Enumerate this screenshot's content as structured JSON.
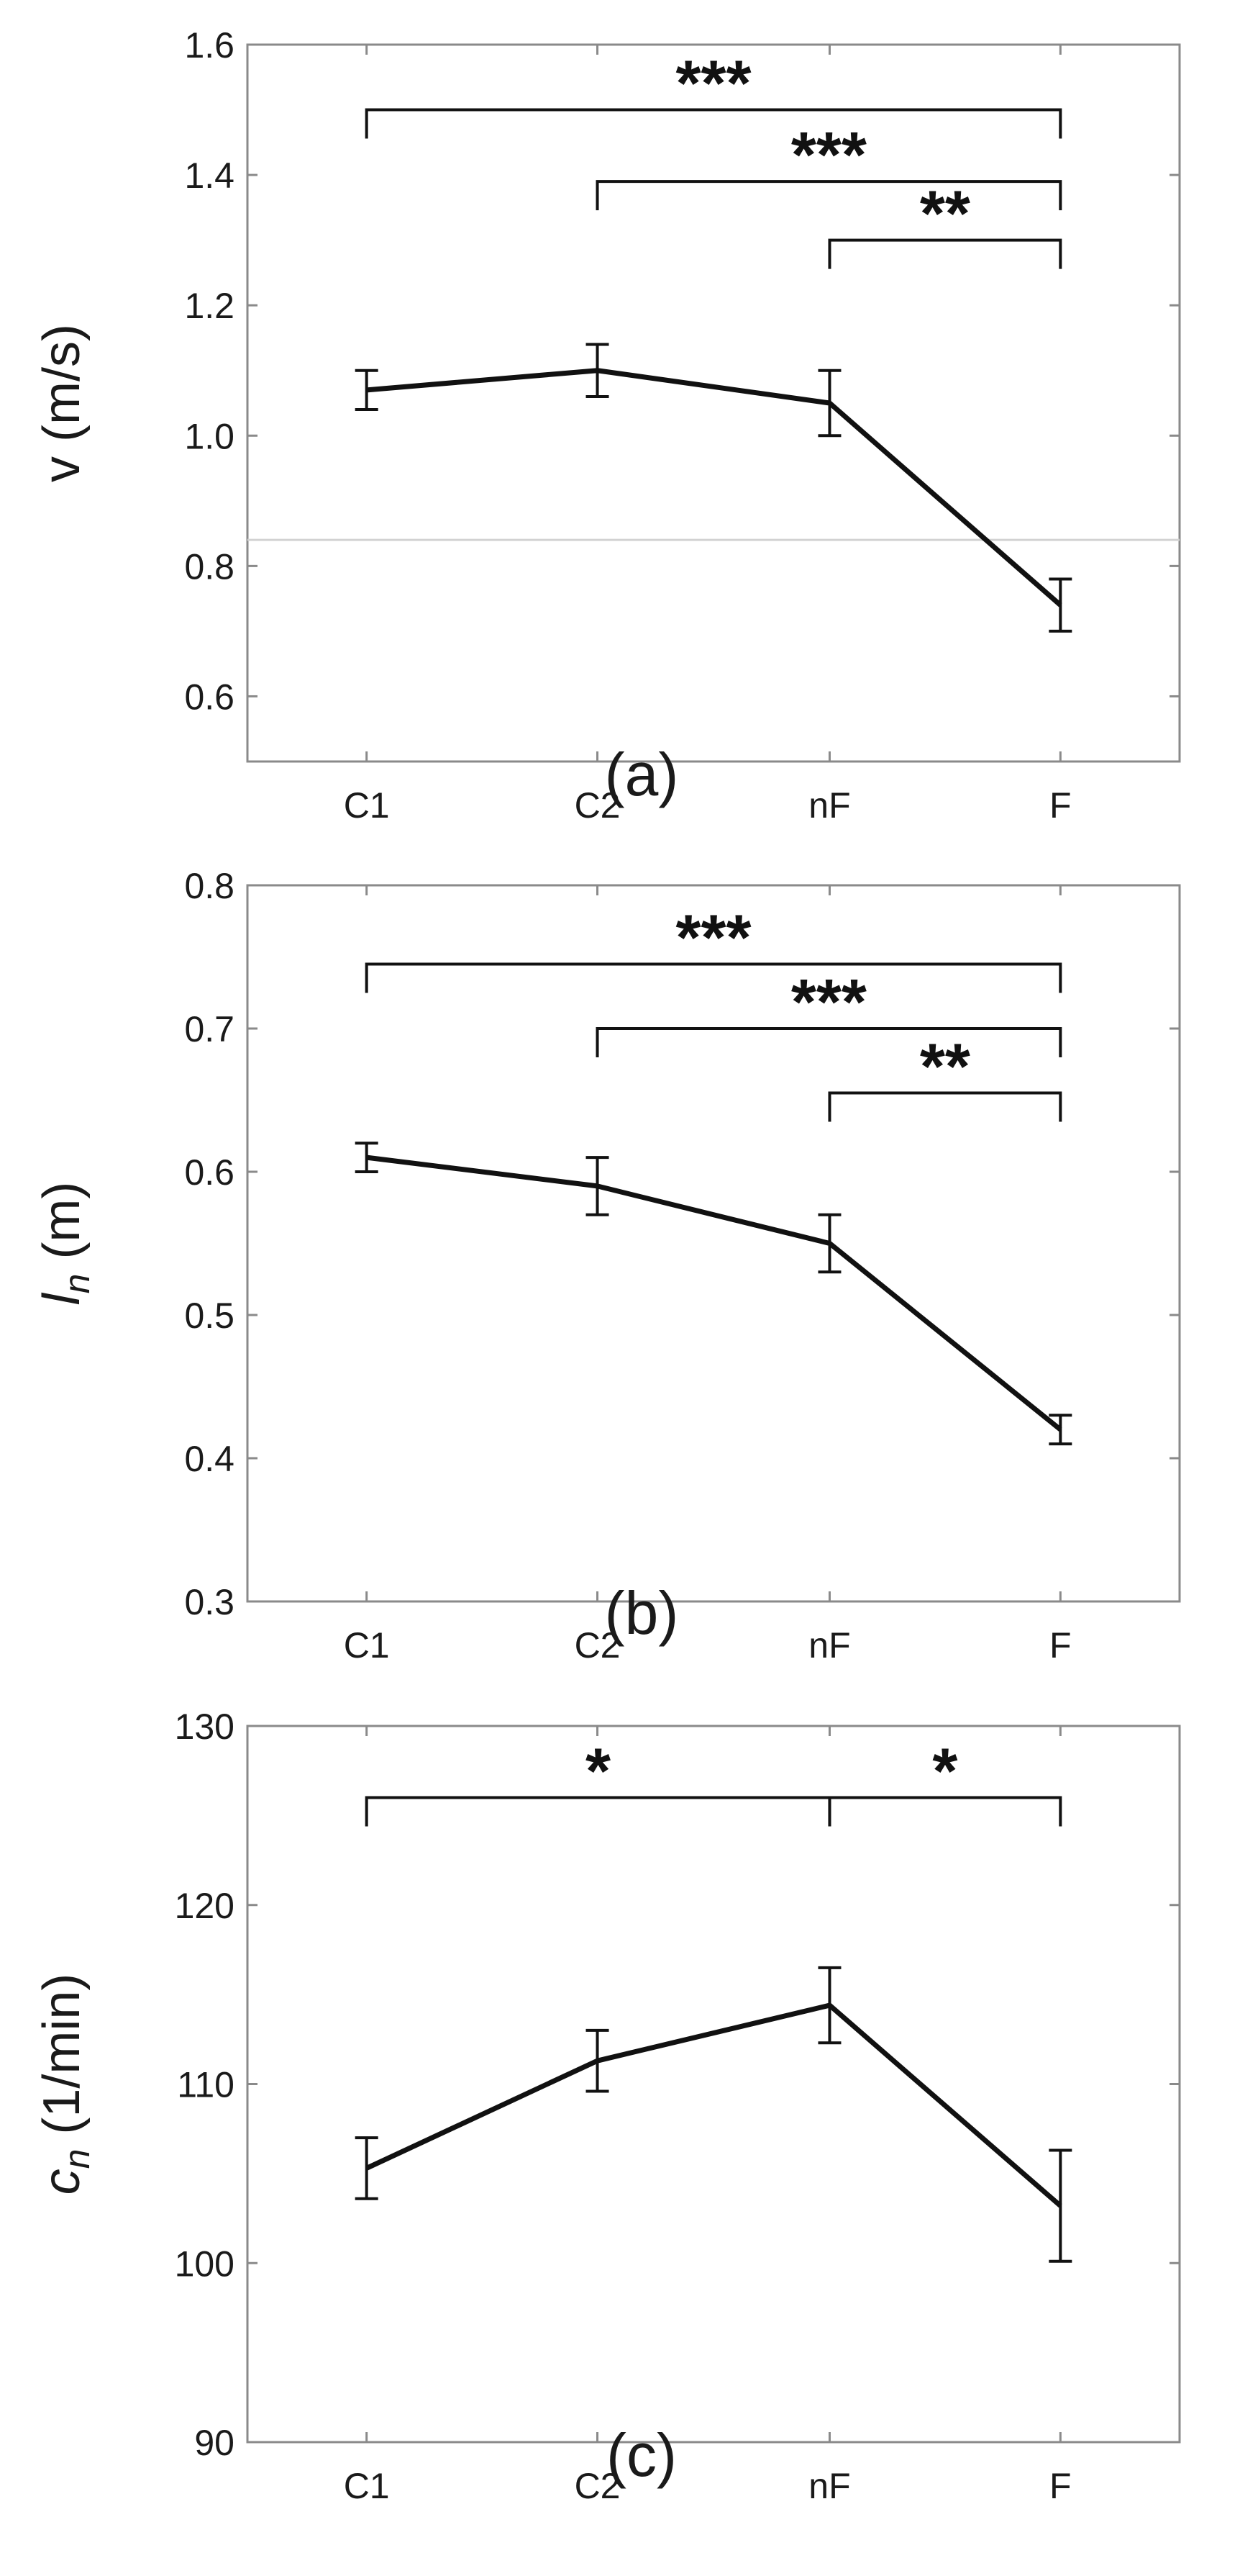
{
  "chart_data": [
    {
      "type": "line",
      "categories": [
        "C1",
        "C2",
        "nF",
        "F"
      ],
      "values": [
        1.07,
        1.1,
        1.05,
        0.74
      ],
      "error": [
        0.03,
        0.04,
        0.05,
        0.04
      ],
      "ylim": [
        0.5,
        1.6
      ],
      "yticks": [
        "0.6",
        "0.8",
        "1.0",
        "1.2",
        "1.4",
        "1.6"
      ],
      "ylabel": "v (m/s)",
      "reference_line": 0.84,
      "caption": "(a)",
      "significance": [
        {
          "from": "C1",
          "to": "F",
          "label": "***",
          "y": 1.5
        },
        {
          "from": "C2",
          "to": "F",
          "label": "***",
          "y": 1.39
        },
        {
          "from": "nF",
          "to": "F",
          "label": "**",
          "y": 1.3
        }
      ]
    },
    {
      "type": "line",
      "categories": [
        "C1",
        "C2",
        "nF",
        "F"
      ],
      "values": [
        0.61,
        0.59,
        0.55,
        0.42
      ],
      "error": [
        0.01,
        0.02,
        0.02,
        0.01
      ],
      "ylim": [
        0.3,
        0.8
      ],
      "yticks": [
        "0.3",
        "0.4",
        "0.5",
        "0.6",
        "0.7",
        "0.8"
      ],
      "ylabel_main": "l",
      "ylabel_sub": "n",
      "ylabel_unit": " (m)",
      "caption": "(b)",
      "significance": [
        {
          "from": "C1",
          "to": "F",
          "label": "***",
          "y": 0.745
        },
        {
          "from": "C2",
          "to": "F",
          "label": "***",
          "y": 0.7
        },
        {
          "from": "nF",
          "to": "F",
          "label": "**",
          "y": 0.655
        }
      ]
    },
    {
      "type": "line",
      "categories": [
        "C1",
        "C2",
        "nF",
        "F"
      ],
      "values": [
        105.3,
        111.3,
        114.4,
        103.2
      ],
      "error": [
        1.7,
        1.7,
        2.1,
        3.1
      ],
      "ylim": [
        90,
        130
      ],
      "yticks": [
        "90",
        "100",
        "110",
        "120",
        "130"
      ],
      "ylabel_main": "c",
      "ylabel_sub": "n",
      "ylabel_unit": " (1/min)",
      "caption": "(c)",
      "significance": [
        {
          "from": "C1",
          "to": "nF",
          "label": "*",
          "y": 126
        },
        {
          "from": "nF",
          "to": "F",
          "label": "*",
          "y": 126
        }
      ]
    }
  ]
}
